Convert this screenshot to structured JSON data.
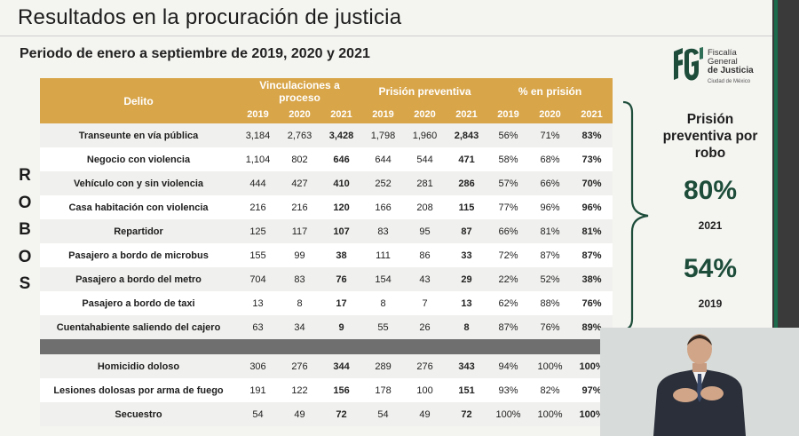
{
  "title": "Resultados en la procuración de justicia",
  "subtitle": "Periodo de enero a septiembre de 2019, 2020 y 2021",
  "logo": {
    "line1": "Fiscalía",
    "line2": "General",
    "line3": "de Justicia",
    "line4": "Ciudad de México"
  },
  "side_vertical": [
    "R",
    "O",
    "B",
    "O",
    "S"
  ],
  "table": {
    "headers": {
      "delito": "Delito",
      "group1": "Vinculaciones a proceso",
      "group2": "Prisión preventiva",
      "group3": "% en prisión"
    },
    "years": [
      "2019",
      "2020",
      "2021",
      "2019",
      "2020",
      "2021",
      "2019",
      "2020",
      "2021"
    ],
    "robos": [
      {
        "delito": "Transeunte en vía pública",
        "v": [
          "3,184",
          "2,763",
          "3,428",
          "1,798",
          "1,960",
          "2,843",
          "56%",
          "71%",
          "83%"
        ]
      },
      {
        "delito": "Negocio con violencia",
        "v": [
          "1,104",
          "802",
          "646",
          "644",
          "544",
          "471",
          "58%",
          "68%",
          "73%"
        ]
      },
      {
        "delito": "Vehículo con y sin violencia",
        "v": [
          "444",
          "427",
          "410",
          "252",
          "281",
          "286",
          "57%",
          "66%",
          "70%"
        ]
      },
      {
        "delito": "Casa habitación con violencia",
        "v": [
          "216",
          "216",
          "120",
          "166",
          "208",
          "115",
          "77%",
          "96%",
          "96%"
        ]
      },
      {
        "delito": "Repartidor",
        "v": [
          "125",
          "117",
          "107",
          "83",
          "95",
          "87",
          "66%",
          "81%",
          "81%"
        ]
      },
      {
        "delito": "Pasajero a bordo de microbus",
        "v": [
          "155",
          "99",
          "38",
          "111",
          "86",
          "33",
          "72%",
          "87%",
          "87%"
        ]
      },
      {
        "delito": "Pasajero a bordo del metro",
        "v": [
          "704",
          "83",
          "76",
          "154",
          "43",
          "29",
          "22%",
          "52%",
          "38%"
        ]
      },
      {
        "delito": "Pasajero a bordo de taxi",
        "v": [
          "13",
          "8",
          "17",
          "8",
          "7",
          "13",
          "62%",
          "88%",
          "76%"
        ]
      },
      {
        "delito": "Cuentahabiente saliendo del cajero",
        "v": [
          "63",
          "34",
          "9",
          "55",
          "26",
          "8",
          "87%",
          "76%",
          "89%"
        ]
      }
    ],
    "otros": [
      {
        "delito": "Homicidio doloso",
        "v": [
          "306",
          "276",
          "344",
          "289",
          "276",
          "343",
          "94%",
          "100%",
          "100%"
        ]
      },
      {
        "delito": "Lesiones dolosas por arma de fuego",
        "v": [
          "191",
          "122",
          "156",
          "178",
          "100",
          "151",
          "93%",
          "82%",
          "97%"
        ]
      },
      {
        "delito": "Secuestro",
        "v": [
          "54",
          "49",
          "72",
          "54",
          "49",
          "72",
          "100%",
          "100%",
          "100%"
        ]
      }
    ]
  },
  "summary": {
    "label": "Prisión preventiva por robo",
    "pct_2021": "80%",
    "year_2021": "2021",
    "pct_2019": "54%",
    "year_2019": "2019"
  },
  "colors": {
    "header": "#d8a549",
    "accent": "#1d4d3a"
  }
}
